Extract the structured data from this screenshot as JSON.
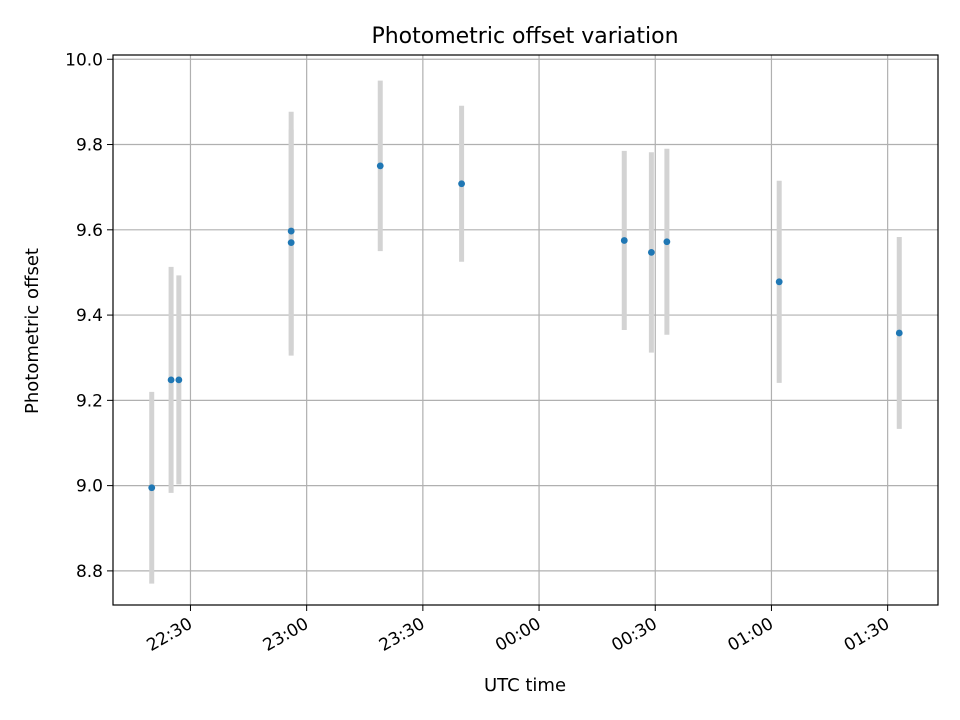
{
  "chart_data": {
    "type": "scatter",
    "title": "Photometric offset variation",
    "xlabel": "UTC time",
    "ylabel": "Photometric offset",
    "xlim": [
      "22:10",
      "01:43"
    ],
    "ylim": [
      8.72,
      10.01
    ],
    "xticks": [
      "22:30",
      "23:00",
      "23:30",
      "00:00",
      "00:30",
      "01:00",
      "01:30"
    ],
    "yticks": [
      8.8,
      9.0,
      9.2,
      9.4,
      9.6,
      9.8,
      10.0
    ],
    "grid": true,
    "marker_color": "#1f77b4",
    "errorbar_color": "#d3d3d3",
    "points": [
      {
        "x": "22:20",
        "y": 8.995,
        "yerr": 0.225
      },
      {
        "x": "22:25",
        "y": 9.248,
        "yerr": 0.265
      },
      {
        "x": "22:27",
        "y": 9.248,
        "yerr": 0.245
      },
      {
        "x": "22:56",
        "y": 9.597,
        "yerr": 0.28
      },
      {
        "x": "22:56",
        "y": 9.57,
        "yerr": 0.265
      },
      {
        "x": "23:19",
        "y": 9.75,
        "yerr": 0.2
      },
      {
        "x": "23:40",
        "y": 9.708,
        "yerr": 0.183
      },
      {
        "x": "00:22",
        "y": 9.575,
        "yerr": 0.21
      },
      {
        "x": "00:29",
        "y": 9.547,
        "yerr": 0.235
      },
      {
        "x": "00:33",
        "y": 9.572,
        "yerr": 0.218
      },
      {
        "x": "01:02",
        "y": 9.478,
        "yerr": 0.237
      },
      {
        "x": "01:33",
        "y": 9.358,
        "yerr": 0.225
      }
    ]
  }
}
